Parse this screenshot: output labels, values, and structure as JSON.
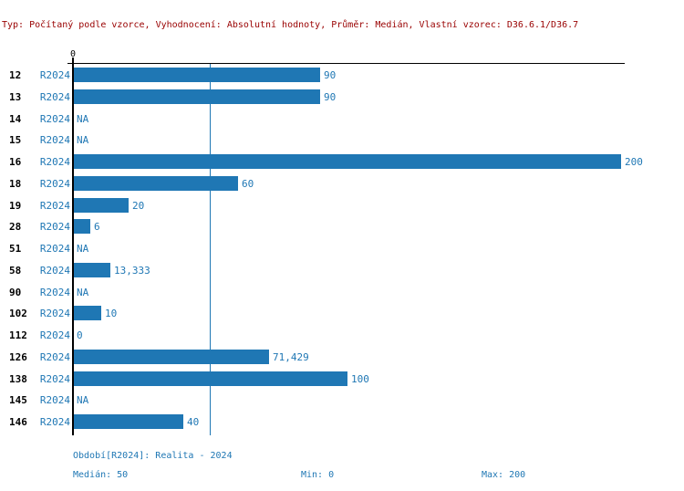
{
  "title": "Typ: Počítaný podle vzorce, Vyhodnocení: Absolutní hodnoty, Průměr: Medián, Vlastní vzorec: D36.6.1/D36.7",
  "axis": {
    "zero_label": "0"
  },
  "colors": {
    "bar_blue": "#1f77b4",
    "label_blue": "#1f77b4",
    "title_red": "#990000",
    "axis_black": "#000000"
  },
  "rows": [
    {
      "id": "12",
      "period": "R2024",
      "value": 90,
      "display": "90"
    },
    {
      "id": "13",
      "period": "R2024",
      "value": 90,
      "display": "90"
    },
    {
      "id": "14",
      "period": "R2024",
      "value": null,
      "display": "NA"
    },
    {
      "id": "15",
      "period": "R2024",
      "value": null,
      "display": "NA"
    },
    {
      "id": "16",
      "period": "R2024",
      "value": 200,
      "display": "200"
    },
    {
      "id": "18",
      "period": "R2024",
      "value": 60,
      "display": "60"
    },
    {
      "id": "19",
      "period": "R2024",
      "value": 20,
      "display": "20"
    },
    {
      "id": "28",
      "period": "R2024",
      "value": 6,
      "display": "6"
    },
    {
      "id": "51",
      "period": "R2024",
      "value": null,
      "display": "NA"
    },
    {
      "id": "58",
      "period": "R2024",
      "value": 13.333,
      "display": "13,333"
    },
    {
      "id": "90",
      "period": "R2024",
      "value": null,
      "display": "NA"
    },
    {
      "id": "102",
      "period": "R2024",
      "value": 10,
      "display": "10"
    },
    {
      "id": "112",
      "period": "R2024",
      "value": 0,
      "display": "0"
    },
    {
      "id": "126",
      "period": "R2024",
      "value": 71.429,
      "display": "71,429"
    },
    {
      "id": "138",
      "period": "R2024",
      "value": 100,
      "display": "100"
    },
    {
      "id": "145",
      "period": "R2024",
      "value": null,
      "display": "NA"
    },
    {
      "id": "146",
      "period": "R2024",
      "value": 40,
      "display": "40"
    }
  ],
  "footer": {
    "period_line": "Období[R2024]: Realita - 2024",
    "median": "Medián: 50",
    "min": "Min: 0",
    "max": "Max: 200"
  },
  "chart_data": {
    "type": "bar",
    "orientation": "horizontal",
    "title": "Typ: Počítaný podle vzorce, Vyhodnocení: Absolutní hodnoty, Průměr: Medián, Vlastní vzorec: D36.6.1/D36.7",
    "categories": [
      "12",
      "13",
      "14",
      "15",
      "16",
      "18",
      "19",
      "28",
      "51",
      "58",
      "90",
      "102",
      "112",
      "126",
      "138",
      "145",
      "146"
    ],
    "series": [
      {
        "name": "R2024",
        "values": [
          90,
          90,
          null,
          null,
          200,
          60,
          20,
          6,
          null,
          13.333,
          null,
          10,
          0,
          71.429,
          100,
          null,
          40
        ]
      }
    ],
    "value_labels": [
      "90",
      "90",
      "NA",
      "NA",
      "200",
      "60",
      "20",
      "6",
      "NA",
      "13,333",
      "NA",
      "10",
      "0",
      "71,429",
      "100",
      "NA",
      "40"
    ],
    "xlim": [
      0,
      200
    ],
    "median_line": 50,
    "stats": {
      "median": 50,
      "min": 0,
      "max": 200
    },
    "grid": false,
    "legend_position": "none"
  }
}
